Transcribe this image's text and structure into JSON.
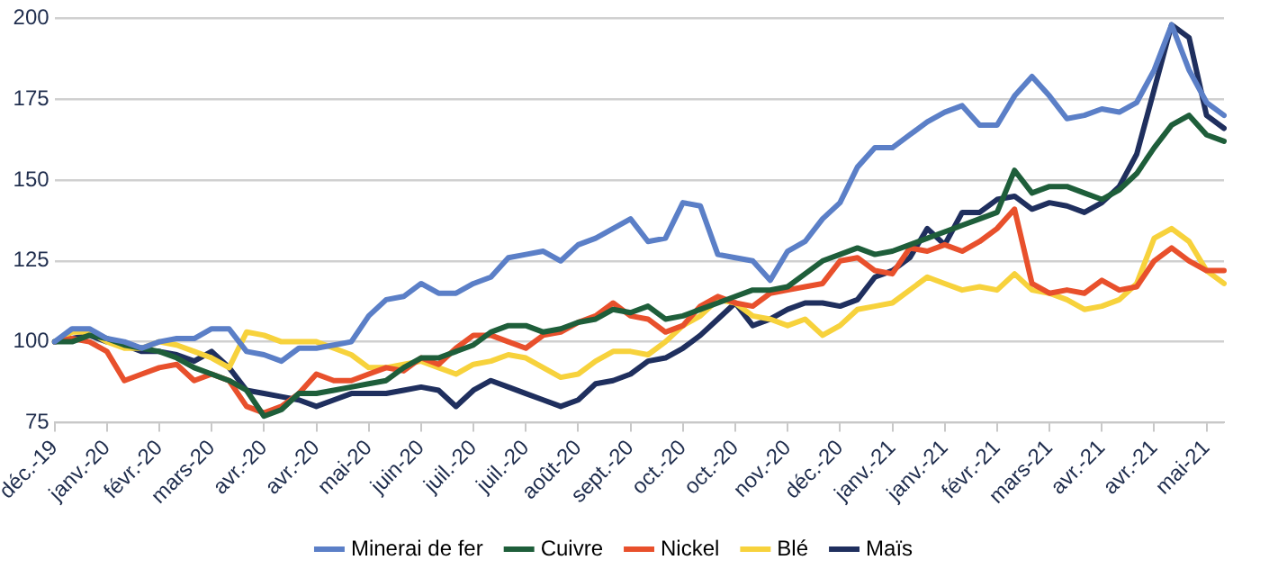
{
  "chart_data": {
    "type": "line",
    "categories": [
      "déc.-19",
      null,
      null,
      "janv.-20",
      null,
      null,
      "févr.-20",
      null,
      null,
      "mars-20",
      null,
      null,
      "avr.-20",
      null,
      null,
      "avr.-20",
      null,
      null,
      "mai-20",
      null,
      null,
      "juin-20",
      null,
      null,
      "juil.-20",
      null,
      null,
      "juil.-20",
      null,
      null,
      "août-20",
      null,
      null,
      "sept.-20",
      null,
      null,
      "oct.-20",
      null,
      null,
      "oct.-20",
      null,
      null,
      "nov.-20",
      null,
      null,
      "déc.-20",
      null,
      null,
      "janv.-21",
      null,
      null,
      "janv.-21",
      null,
      null,
      "févr.-21",
      null,
      null,
      "mars-21",
      null,
      null,
      "avr.-21",
      null,
      null,
      "avr.-21",
      null,
      null,
      "mai-21",
      null
    ],
    "series": [
      {
        "name": "Minerai de fer",
        "color": "#5b7fc7",
        "values": [
          100,
          104,
          104,
          101,
          100,
          98,
          100,
          101,
          101,
          104,
          104,
          97,
          96,
          94,
          98,
          98,
          99,
          100,
          108,
          113,
          114,
          118,
          115,
          115,
          118,
          120,
          126,
          127,
          128,
          125,
          130,
          132,
          135,
          138,
          131,
          132,
          143,
          142,
          127,
          126,
          125,
          119,
          128,
          131,
          138,
          143,
          154,
          160,
          160,
          164,
          168,
          171,
          173,
          167,
          167,
          176,
          182,
          176,
          169,
          170,
          172,
          171,
          174,
          184,
          198,
          184,
          174,
          170
        ]
      },
      {
        "name": "Cuivre",
        "color": "#1e5e3a",
        "values": [
          100,
          100,
          102,
          101,
          99,
          98,
          97,
          95,
          92,
          90,
          88,
          85,
          77,
          79,
          84,
          84,
          85,
          86,
          87,
          88,
          92,
          95,
          95,
          97,
          99,
          103,
          105,
          105,
          103,
          104,
          106,
          107,
          110,
          109,
          111,
          107,
          108,
          110,
          112,
          114,
          116,
          116,
          117,
          121,
          125,
          127,
          129,
          127,
          128,
          130,
          132,
          134,
          136,
          138,
          140,
          153,
          146,
          148,
          148,
          146,
          144,
          147,
          152,
          160,
          167,
          170,
          164,
          162
        ]
      },
      {
        "name": "Nickel",
        "color": "#e8502c",
        "values": [
          100,
          101,
          100,
          97,
          88,
          90,
          92,
          93,
          88,
          90,
          88,
          80,
          78,
          80,
          84,
          90,
          88,
          88,
          90,
          92,
          91,
          95,
          93,
          98,
          102,
          102,
          100,
          98,
          102,
          103,
          106,
          108,
          112,
          108,
          107,
          103,
          105,
          111,
          114,
          112,
          111,
          115,
          116,
          117,
          118,
          125,
          126,
          122,
          121,
          129,
          128,
          130,
          128,
          131,
          135,
          141,
          118,
          115,
          116,
          115,
          119,
          116,
          117,
          125,
          129,
          125,
          122,
          122
        ]
      },
      {
        "name": "Blé",
        "color": "#f7d23c",
        "values": [
          100,
          103,
          103,
          100,
          98,
          98,
          100,
          99,
          97,
          95,
          92,
          103,
          102,
          100,
          100,
          100,
          98,
          96,
          92,
          92,
          93,
          94,
          92,
          90,
          93,
          94,
          96,
          95,
          92,
          89,
          90,
          94,
          97,
          97,
          96,
          100,
          105,
          108,
          113,
          112,
          108,
          107,
          105,
          107,
          102,
          105,
          110,
          111,
          112,
          116,
          120,
          118,
          116,
          117,
          116,
          121,
          116,
          115,
          113,
          110,
          111,
          113,
          118,
          132,
          135,
          131,
          122,
          118
        ]
      },
      {
        "name": "Maïs",
        "color": "#1f2f5e",
        "values": [
          100,
          101,
          102,
          100,
          99,
          97,
          97,
          96,
          94,
          97,
          92,
          85,
          84,
          83,
          82,
          80,
          82,
          84,
          84,
          84,
          85,
          86,
          85,
          80,
          85,
          88,
          86,
          84,
          82,
          80,
          82,
          87,
          88,
          90,
          94,
          95,
          98,
          102,
          107,
          112,
          105,
          107,
          110,
          112,
          112,
          111,
          113,
          120,
          122,
          126,
          135,
          130,
          140,
          140,
          144,
          145,
          141,
          143,
          142,
          140,
          143,
          148,
          158,
          178,
          198,
          194,
          170,
          166
        ]
      }
    ],
    "ylim": [
      75,
      200
    ],
    "yticks": [
      75,
      100,
      125,
      150,
      175,
      200
    ],
    "grid": "y",
    "legend": "bottom",
    "marker": "none",
    "line_style": "solid"
  }
}
